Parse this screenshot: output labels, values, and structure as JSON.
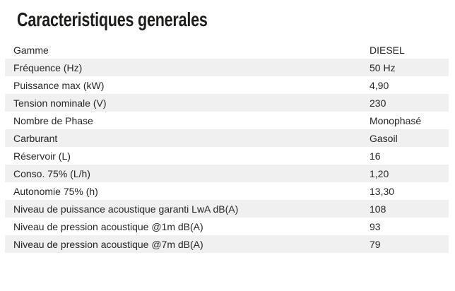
{
  "page": {
    "title": "Caracteristiques generales",
    "colors": {
      "background": "#ffffff",
      "stripe": "#f0f0f0",
      "title_text": "#1d1d1b",
      "row_text": "#262626"
    }
  },
  "table": {
    "rows": [
      {
        "label": "Gamme",
        "value": "DIESEL"
      },
      {
        "label": "Fréquence (Hz)",
        "value": "50 Hz"
      },
      {
        "label": "Puissance max (kW)",
        "value": "4,90"
      },
      {
        "label": "Tension nominale (V)",
        "value": "230"
      },
      {
        "label": "Nombre de Phase",
        "value": "Monophasé"
      },
      {
        "label": "Carburant",
        "value": "Gasoil"
      },
      {
        "label": "Réservoir (L)",
        "value": "16"
      },
      {
        "label": "Conso. 75% (L/h)",
        "value": "1,20"
      },
      {
        "label": "Autonomie 75% (h)",
        "value": "13,30"
      },
      {
        "label": "Niveau de puissance acoustique garanti LwA dB(A)",
        "value": "108"
      },
      {
        "label": "Niveau de pression acoustique @1m dB(A)",
        "value": "93"
      },
      {
        "label": "Niveau de pression acoustique @7m dB(A)",
        "value": "79"
      }
    ]
  }
}
